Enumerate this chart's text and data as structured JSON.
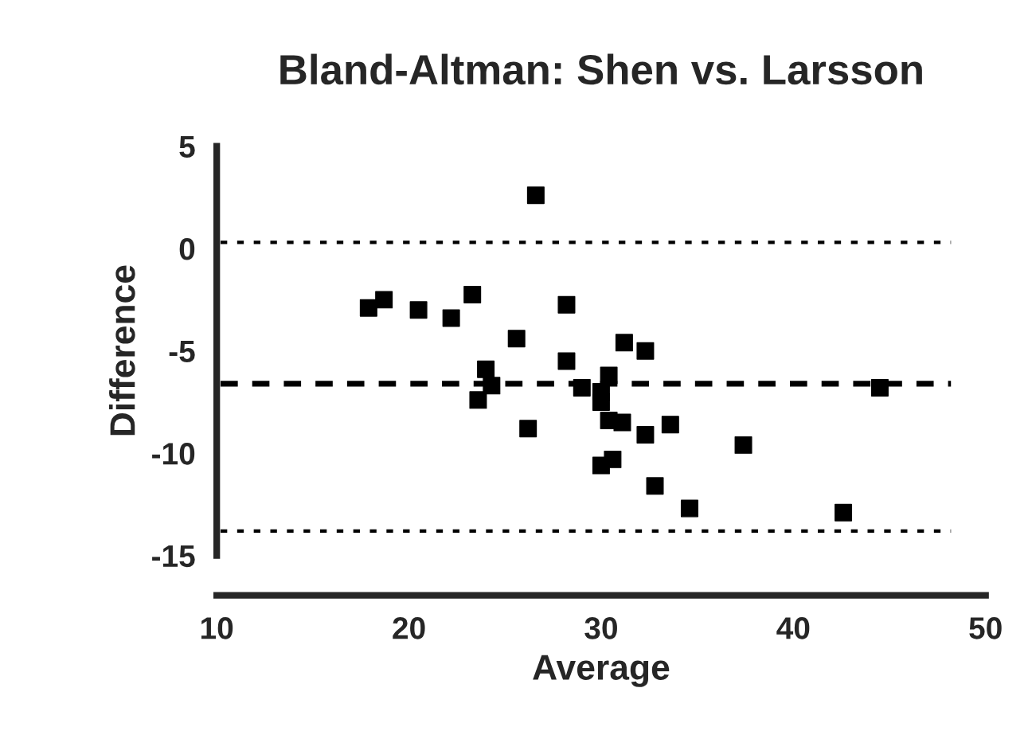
{
  "chart_data": {
    "type": "scatter",
    "title": "Bland-Altman: Shen vs. Larsson",
    "xlabel": "Average",
    "ylabel": "Difference",
    "x": [
      17.9,
      18.7,
      20.5,
      22.2,
      23.3,
      25.6,
      24.0,
      24.3,
      23.6,
      26.2,
      26.6,
      28.2,
      28.2,
      31.2,
      32.3,
      30.4,
      29.0,
      30.0,
      30.0,
      30.4,
      31.1,
      32.3,
      33.6,
      37.4,
      30.6,
      30.0,
      32.8,
      34.6,
      42.6,
      44.5
    ],
    "values": [
      -2.9,
      -2.5,
      -3.0,
      -3.4,
      -2.25,
      -4.4,
      -5.9,
      -6.7,
      -7.4,
      -8.8,
      2.6,
      -2.75,
      -5.5,
      -4.6,
      -5.0,
      -6.2,
      -6.8,
      -7.0,
      -7.5,
      -8.4,
      -8.5,
      -9.1,
      -8.6,
      -9.6,
      -10.3,
      -10.6,
      -11.6,
      -12.7,
      -12.9,
      -6.8
    ],
    "color": "#000000",
    "marker": "square",
    "grid": false,
    "xlim": [
      10,
      50
    ],
    "xticks": [
      10,
      20,
      30,
      40,
      50
    ],
    "ylim": [
      -15,
      5
    ],
    "yticks": [
      -15,
      -10,
      -5,
      0,
      5
    ],
    "ref_lines": [
      {
        "axis": "y",
        "value": 0.3,
        "line_style": "dotted",
        "color": "#000000"
      },
      {
        "axis": "y",
        "value": -6.6,
        "line_style": "dashed",
        "color": "#000000"
      },
      {
        "axis": "y",
        "value": -13.8,
        "line_style": "dotted",
        "color": "#000000"
      }
    ]
  }
}
